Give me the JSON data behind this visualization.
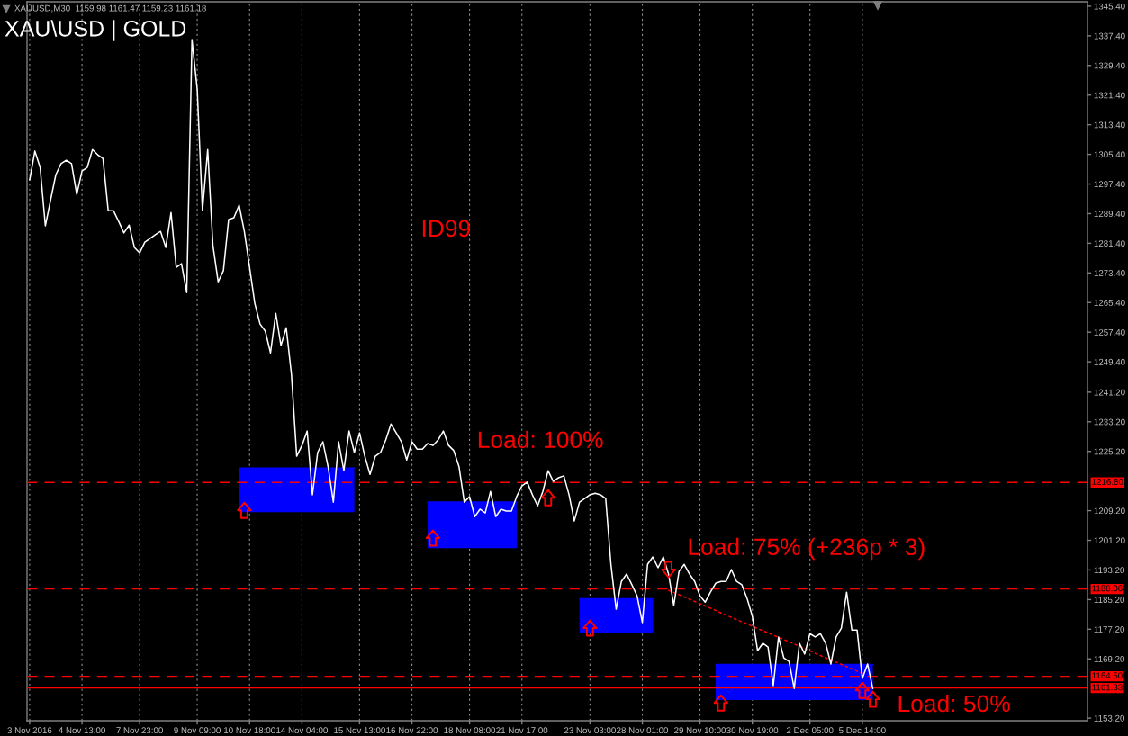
{
  "chart_data": {
    "type": "line",
    "title": "XAU\\USD | GOLD",
    "subtitle": "XAUUSD,M30  1159.98 1161.47 1159.23 1161.18",
    "categories": [
      "3 Nov 2016",
      null,
      null,
      null,
      null,
      null,
      null,
      null,
      null,
      null,
      "4 Nov 13:00",
      null,
      null,
      null,
      null,
      null,
      null,
      null,
      null,
      null,
      null,
      "7 Nov 23:00",
      null,
      null,
      null,
      null,
      null,
      null,
      null,
      null,
      null,
      null,
      "9 Nov 09:00",
      null,
      null,
      null,
      null,
      null,
      null,
      null,
      null,
      null,
      "10 Nov 18:00",
      null,
      null,
      null,
      null,
      null,
      null,
      null,
      null,
      null,
      "14 Nov 04:00",
      null,
      null,
      null,
      null,
      null,
      null,
      null,
      null,
      null,
      null,
      "15 Nov 13:00",
      null,
      null,
      null,
      null,
      null,
      null,
      null,
      null,
      null,
      "16 Nov 22:00",
      null,
      null,
      null,
      null,
      null,
      null,
      null,
      null,
      null,
      null,
      "18 Nov 08:00",
      null,
      null,
      null,
      null,
      null,
      null,
      null,
      null,
      null,
      "21 Nov 17:00",
      null,
      null,
      null,
      null,
      null,
      null,
      null,
      null,
      null,
      null,
      null,
      null,
      "23 Nov 03:00",
      null,
      null,
      null,
      null,
      null,
      null,
      null,
      null,
      null,
      "28 Nov 01:00",
      null,
      null,
      null,
      null,
      null,
      null,
      null,
      null,
      null,
      null,
      "29 Nov 10:00",
      null,
      null,
      null,
      null,
      null,
      null,
      null,
      null,
      null,
      "30 Nov 19:00",
      null,
      null,
      null,
      null,
      null,
      null,
      null,
      null,
      null,
      null,
      "2 Dec 05:00",
      null,
      null,
      null,
      null,
      null,
      null,
      null,
      null,
      null,
      "5 Dec 14:00",
      null,
      null
    ],
    "series": [
      {
        "type": "line",
        "color": "#0000ff",
        "values": [
          null,
          null,
          null,
          null,
          null,
          null,
          null,
          null,
          null,
          null,
          null,
          null,
          null,
          null,
          null,
          null,
          null,
          null,
          null,
          null,
          null,
          null,
          null,
          null,
          null,
          null,
          null,
          null,
          null,
          null,
          null,
          null,
          null,
          null,
          null,
          null,
          null,
          null,
          null,
          null,
          1220.7,
          1220.7,
          1220.7,
          1220.7,
          1220.7,
          1220.7,
          1220.7,
          1220.7,
          1220.7,
          1220.7,
          1220.7,
          1220.7,
          1220.7,
          1220.7,
          1220.7,
          1220.7,
          1220.7,
          1220.7,
          1220.7,
          1220.7,
          1220.7,
          1220.7,
          1220.7,
          null,
          null,
          null,
          null,
          null,
          null,
          null,
          null,
          null,
          null,
          null,
          null,
          null,
          1211.5,
          1211.5,
          1211.5,
          1211.5,
          1211.5,
          1211.5,
          1211.5,
          1211.5,
          1211.5,
          1211.5,
          1211.5,
          1211.5,
          1211.5,
          1211.5,
          1211.5,
          1211.5,
          1211.5,
          1211.5,
          null,
          null,
          null,
          null,
          null,
          null,
          null,
          null,
          null,
          null,
          null,
          1185.4,
          1185.4,
          1185.4,
          1185.4,
          1185.4,
          1185.4,
          1185.4,
          1185.4,
          1185.4,
          1185.4,
          1185.4,
          1185.4,
          1185.4,
          1185.4,
          1185.4,
          null,
          null,
          null,
          null,
          null,
          null,
          null,
          null,
          null,
          null,
          null,
          1167.7,
          1167.7,
          1167.7,
          1167.7,
          1167.7,
          1167.7,
          1167.7,
          1167.7,
          1167.7,
          1167.7,
          1167.7,
          1167.7,
          1167.7,
          1167.7,
          1167.7,
          1167.7,
          1167.7,
          1167.7,
          1167.7,
          1167.7,
          1167.7,
          1167.7,
          1167.7,
          1167.7,
          1167.7,
          1167.7,
          1167.7,
          1167.7,
          1167.7,
          1167.7,
          1167.7
        ],
        "upper": [
          null,
          null,
          null,
          null,
          null,
          null,
          null,
          null,
          null,
          null,
          null,
          null,
          null,
          null,
          null,
          null,
          null,
          null,
          null,
          null,
          null,
          null,
          null,
          null,
          null,
          null,
          null,
          null,
          null,
          null,
          null,
          null,
          null,
          null,
          null,
          null,
          null,
          null,
          null,
          null,
          1220.7,
          1220.7,
          1220.7,
          1220.7,
          1220.7,
          1220.7,
          1220.7,
          1220.7,
          1220.7,
          1220.7,
          1220.7,
          1220.7,
          1220.7,
          1220.7,
          1220.7,
          1220.7,
          1220.7,
          1220.7,
          1220.7,
          1220.7,
          1220.7,
          1220.7,
          1220.7,
          null,
          null,
          null,
          null,
          null,
          null,
          null,
          null,
          null,
          null,
          null,
          null,
          null,
          1211.5,
          1211.5,
          1211.5,
          1211.5,
          1211.5,
          1211.5,
          1211.5,
          1211.5,
          1211.5,
          1211.5,
          1211.5,
          1211.5,
          1211.5,
          1211.5,
          1211.5,
          1211.5,
          1211.5,
          1211.5,
          null,
          null,
          null,
          null,
          null,
          null,
          null,
          null,
          null,
          null,
          null,
          1185.4,
          1185.4,
          1185.4,
          1185.4,
          1185.4,
          1185.4,
          1185.4,
          1185.4,
          1185.4,
          1185.4,
          1185.4,
          1185.4,
          1185.4,
          1185.4,
          1185.4,
          null,
          null,
          null,
          null,
          null,
          null,
          null,
          null,
          null,
          null,
          null,
          1167.7,
          1167.7,
          1167.7,
          1167.7,
          1167.7,
          1167.7,
          1167.7,
          1167.7,
          1167.7,
          1167.7,
          1167.7,
          1167.7,
          1167.7,
          1167.7,
          1167.7,
          1167.7,
          1167.7,
          1167.7,
          1167.7,
          1167.7,
          1167.7,
          1167.7,
          1167.7,
          1167.7,
          1167.7,
          1167.7,
          1167.7,
          1167.7,
          1167.7,
          1167.7,
          1167.7
        ],
        "lower": [
          null,
          null,
          null,
          null,
          null,
          null,
          null,
          null,
          null,
          null,
          null,
          null,
          null,
          null,
          null,
          null,
          null,
          null,
          null,
          null,
          null,
          null,
          null,
          null,
          null,
          null,
          null,
          null,
          null,
          null,
          null,
          null,
          null,
          null,
          null,
          null,
          null,
          null,
          null,
          null,
          1208.8,
          1208.8,
          1208.8,
          1208.8,
          1208.8,
          1208.8,
          1208.8,
          1208.8,
          1208.8,
          1208.8,
          1208.8,
          1208.8,
          1208.8,
          1208.8,
          1208.8,
          1208.8,
          1208.8,
          1208.8,
          1208.8,
          1208.8,
          1208.8,
          1208.8,
          1208.8,
          null,
          null,
          null,
          null,
          null,
          null,
          null,
          null,
          null,
          null,
          null,
          null,
          null,
          1199.1,
          1199.1,
          1199.1,
          1199.1,
          1199.1,
          1199.1,
          1199.1,
          1199.1,
          1199.1,
          1199.1,
          1199.1,
          1199.1,
          1199.1,
          1199.1,
          1199.1,
          1199.1,
          1199.1,
          1199.1,
          null,
          null,
          null,
          null,
          null,
          null,
          null,
          null,
          null,
          null,
          null,
          1176.3,
          1176.3,
          1176.3,
          1176.3,
          1176.3,
          1176.3,
          1176.3,
          1176.3,
          1176.3,
          1176.3,
          1176.3,
          1176.3,
          1176.3,
          1176.3,
          1176.3,
          null,
          null,
          null,
          null,
          null,
          null,
          null,
          null,
          null,
          null,
          null,
          1158.1,
          1158.1,
          1158.1,
          1158.1,
          1158.1,
          1158.1,
          1158.1,
          1158.1,
          1158.1,
          1158.1,
          1158.1,
          1158.1,
          1158.1,
          1158.1,
          1158.1,
          1158.1,
          1158.1,
          1158.1,
          1158.1,
          1158.1,
          1158.1,
          1158.1,
          1158.1,
          1158.1,
          1158.1,
          1158.1,
          1158.1,
          1158.1,
          1158.1,
          1158.1,
          1158.1
        ]
      },
      {
        "type": "line",
        "color": "#ff0000",
        "line_style": "dotted",
        "values": [
          null,
          null,
          null,
          null,
          null,
          null,
          null,
          null,
          null,
          null,
          null,
          null,
          null,
          null,
          null,
          null,
          null,
          null,
          null,
          null,
          null,
          null,
          null,
          null,
          null,
          null,
          null,
          null,
          null,
          null,
          null,
          null,
          null,
          null,
          null,
          null,
          null,
          null,
          null,
          null,
          null,
          null,
          null,
          null,
          null,
          null,
          null,
          null,
          null,
          null,
          null,
          null,
          null,
          null,
          null,
          null,
          null,
          null,
          null,
          null,
          null,
          null,
          null,
          null,
          null,
          null,
          null,
          null,
          null,
          null,
          null,
          null,
          null,
          null,
          null,
          null,
          null,
          null,
          null,
          null,
          null,
          null,
          null,
          null,
          null,
          null,
          null,
          null,
          null,
          null,
          null,
          null,
          null,
          null,
          null,
          null,
          null,
          null,
          null,
          null,
          null,
          null,
          null,
          null,
          null,
          null,
          null,
          null,
          null,
          null,
          null,
          null,
          null,
          null,
          null,
          null,
          null,
          null,
          null,
          null,
          null,
          null,
          1187.7,
          1187.1,
          1186.5,
          1185.9,
          1185.3,
          1184.7,
          1184.1,
          1183.5,
          1182.9,
          1182.3,
          1181.6,
          1181.0,
          1180.4,
          1179.8,
          1179.2,
          1178.6,
          1178.0,
          1177.4,
          1176.8,
          1176.2,
          1175.6,
          1175.0,
          1174.4,
          1173.8,
          1173.2,
          1172.6,
          1172.0,
          1171.4,
          1170.7,
          1170.1,
          1169.5,
          1168.9,
          1168.3,
          1167.7,
          1167.1,
          1166.5,
          1165.9,
          1165.3,
          null,
          null
        ]
      },
      {
        "color": "#ffffff",
        "values": [
          1298.5,
          1306.3,
          1301.9,
          1286.1,
          1293.1,
          1299.9,
          1302.9,
          1303.8,
          1302.9,
          1294.6,
          1300.9,
          1301.9,
          1306.7,
          1305.3,
          1304.3,
          1290.2,
          1290.2,
          1287.3,
          1284.2,
          1286.3,
          1280.3,
          1278.8,
          1281.7,
          1282.7,
          1283.7,
          1284.6,
          1280.3,
          1289.7,
          1274.9,
          1275.9,
          1268.1,
          1336.4,
          1323.0,
          1290.2,
          1306.7,
          1280.8,
          1271.0,
          1274.0,
          1287.8,
          1288.3,
          1291.7,
          1284.6,
          1274.9,
          1265.2,
          1259.6,
          1257.7,
          1251.8,
          1262.5,
          1253.8,
          1258.6,
          1246.0,
          1223.9,
          1226.8,
          1230.7,
          1213.5,
          1224.9,
          1227.8,
          1221.0,
          1211.5,
          1227.8,
          1220.0,
          1230.7,
          1224.9,
          1230.2,
          1223.9,
          1219.0,
          1223.9,
          1224.9,
          1228.3,
          1232.6,
          1230.2,
          1227.8,
          1222.9,
          1227.8,
          1225.8,
          1225.8,
          1227.3,
          1226.8,
          1228.3,
          1230.7,
          1226.8,
          1225.4,
          1221.0,
          1211.5,
          1213.0,
          1207.6,
          1209.6,
          1208.6,
          1214.4,
          1207.6,
          1209.6,
          1209.1,
          1209.1,
          1213.0,
          1215.9,
          1216.9,
          1213.5,
          1210.5,
          1214.4,
          1220.0,
          1217.1,
          1218.1,
          1218.6,
          1213.5,
          1206.4,
          1211.5,
          1212.5,
          1213.5,
          1213.9,
          1213.5,
          1212.5,
          1194.7,
          1182.6,
          1190.1,
          1192.1,
          1189.2,
          1186.2,
          1179.0,
          1194.7,
          1196.7,
          1193.8,
          1196.7,
          1192.1,
          1183.6,
          1192.8,
          1194.7,
          1192.1,
          1190.1,
          1186.2,
          1184.5,
          1187.2,
          1189.6,
          1190.1,
          1190.1,
          1193.3,
          1190.1,
          1189.2,
          1185.5,
          1180.7,
          1171.4,
          1173.4,
          1172.4,
          1162.0,
          1175.1,
          1169.5,
          1168.5,
          1161.2,
          1173.4,
          1170.5,
          1176.0,
          1175.1,
          1176.0,
          1173.4,
          1167.8,
          1175.1,
          1177.5,
          1187.2,
          1177.0,
          1177.0,
          1163.9,
          1167.8,
          1161.2
        ]
      },
      {
        "type": "scatter",
        "color": "#ff0000",
        "marker": "triangle",
        "values": [
          null,
          null,
          null,
          null,
          null,
          null,
          null,
          null,
          null,
          null,
          null,
          null,
          null,
          null,
          null,
          null,
          null,
          null,
          null,
          null,
          null,
          null,
          null,
          null,
          null,
          null,
          null,
          null,
          null,
          null,
          null,
          null,
          null,
          null,
          null,
          null,
          null,
          null,
          null,
          null,
          null,
          1209.3,
          null,
          null,
          null,
          null,
          null,
          null,
          null,
          null,
          null,
          null,
          null,
          null,
          null,
          null,
          null,
          null,
          null,
          null,
          null,
          null,
          null,
          null,
          null,
          null,
          null,
          null,
          null,
          null,
          null,
          null,
          null,
          null,
          null,
          null,
          null,
          1201.8,
          null,
          null,
          null,
          null,
          null,
          null,
          null,
          null,
          null,
          null,
          null,
          null,
          null,
          null,
          null,
          null,
          null,
          null,
          null,
          null,
          null,
          1212.7,
          null,
          null,
          null,
          null,
          null,
          null,
          null,
          1177.5,
          null,
          null,
          null,
          null,
          null,
          null,
          null,
          null,
          null,
          null,
          null,
          null,
          null,
          null,
          1193.3,
          null,
          null,
          null,
          null,
          null,
          null,
          null,
          null,
          null,
          1157.3,
          null,
          null,
          null,
          null,
          null,
          null,
          null,
          null,
          null,
          null,
          null,
          null,
          null,
          null,
          null,
          null,
          null,
          null,
          null,
          null,
          null,
          null,
          null,
          null,
          null,
          null,
          1160.7,
          null,
          1158.3
        ]
      }
    ],
    "ylim": [
      1152.5,
      1346.6
    ],
    "yticks": [
      {
        "value": 1153.2,
        "label": "1153.20"
      },
      {
        "value": 1169.2,
        "label": "1169.20"
      },
      {
        "value": 1177.2,
        "label": "1177.20"
      },
      {
        "value": 1185.2,
        "label": "1185.20"
      },
      {
        "value": 1193.2,
        "label": "1193.20"
      },
      {
        "value": 1201.2,
        "label": "1201.20"
      },
      {
        "value": 1209.2,
        "label": "1209.20"
      },
      {
        "value": 1225.2,
        "label": "1225.20"
      },
      {
        "value": 1233.2,
        "label": "1233.20"
      },
      {
        "value": 1241.2,
        "label": "1241.20"
      },
      {
        "value": 1249.4,
        "label": "1249.40"
      },
      {
        "value": 1257.4,
        "label": "1257.40"
      },
      {
        "value": 1265.4,
        "label": "1265.40"
      },
      {
        "value": 1273.4,
        "label": "1273.40"
      },
      {
        "value": 1281.4,
        "label": "1281.40"
      },
      {
        "value": 1289.4,
        "label": "1289.40"
      },
      {
        "value": 1297.4,
        "label": "1297.40"
      },
      {
        "value": 1305.4,
        "label": "1305.40"
      },
      {
        "value": 1313.4,
        "label": "1313.40"
      },
      {
        "value": 1321.4,
        "label": "1321.40"
      },
      {
        "value": 1329.4,
        "label": "1329.40"
      },
      {
        "value": 1337.4,
        "label": "1337.40"
      },
      {
        "value": 1345.4,
        "label": "1345.40"
      }
    ],
    "grid": "x",
    "ref_lines": [
      {
        "axis": "y",
        "value": 1216.8,
        "label": "1216.80",
        "color": "#ff0000",
        "line_style": "dashed"
      },
      {
        "axis": "y",
        "value": 1188.06,
        "label": "1188.06",
        "color": "#ff0000",
        "line_style": "dashed"
      },
      {
        "axis": "y",
        "value": 1164.5,
        "label": "1164.50",
        "color": "#ff0000",
        "line_style": "dashed"
      },
      {
        "axis": "y",
        "value": 1161.33,
        "label": "1161.33",
        "color": "#ff0000",
        "line_style": "solid"
      }
    ],
    "annotations": [
      "ID99",
      "Load: 100%",
      "Load: 75% (+236p * 3)",
      "Load: 50%"
    ]
  }
}
